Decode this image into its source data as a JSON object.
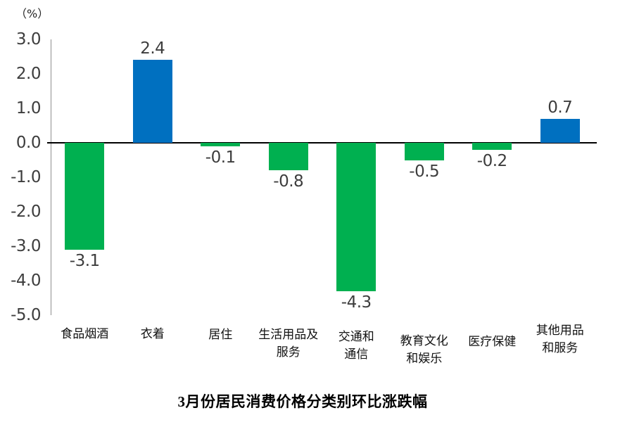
{
  "chart_data": {
    "type": "bar",
    "title": "3月份居民消费价格分类别环比涨跌幅",
    "unit_label": "（%）",
    "categories": [
      "食品烟酒",
      "衣着",
      "居住",
      "生活用品及服务",
      "交通和通信",
      "教育文化和娱乐",
      "医疗保健",
      "其他用品和服务"
    ],
    "category_lines": [
      [
        "食品烟酒"
      ],
      [
        "衣着"
      ],
      [
        "居住"
      ],
      [
        "生活用品及",
        "服务"
      ],
      [
        "交通和",
        "通信"
      ],
      [
        "教育文化",
        "和娱乐"
      ],
      [
        "医疗保健"
      ],
      [
        "其他用品",
        "和服务"
      ]
    ],
    "values": [
      -3.1,
      2.4,
      -0.1,
      -0.8,
      -4.3,
      -0.5,
      -0.2,
      0.7
    ],
    "value_labels": [
      "-3.1",
      "2.4",
      "-0.1",
      "-0.8",
      "-4.3",
      "-0.5",
      "-0.2",
      "0.7"
    ],
    "yticks": [
      "3.0",
      "2.0",
      "1.0",
      "0.0",
      "-1.0",
      "-2.0",
      "-3.0",
      "-4.0",
      "-5.0"
    ],
    "ylim": [
      -5.0,
      3.0
    ],
    "ytick_step": 1.0,
    "colors": {
      "positive": "#0070C0",
      "negative": "#00B050"
    },
    "grid": false,
    "legend": false,
    "xlabel": "",
    "ylabel": "（%）"
  }
}
